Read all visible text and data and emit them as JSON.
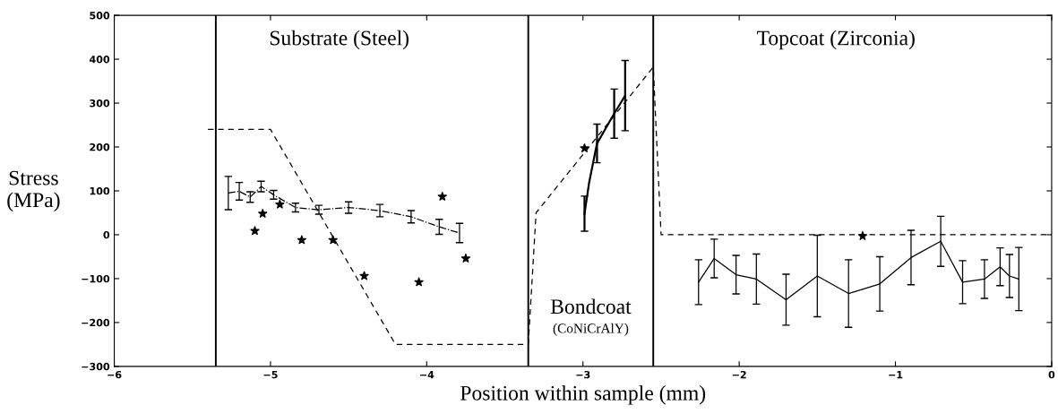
{
  "chart_data": {
    "type": "line",
    "xlabel": "Position within sample (mm)",
    "ylabel": "Stress\n(MPa)",
    "xlim": [
      -6,
      0
    ],
    "xticks": [
      -6,
      -5,
      -4,
      -3,
      -2,
      -1,
      0
    ],
    "ylim": [
      -300,
      500
    ],
    "yticks": [
      -300,
      -200,
      -100,
      0,
      100,
      200,
      300,
      400,
      500
    ],
    "grid": false,
    "legend": false,
    "series": [
      {
        "color": "#000000",
        "line_style": "dashed",
        "marker": "none",
        "x": [
          -5.4,
          -5.0,
          -4.2,
          -3.35,
          -3.3,
          -2.55,
          -2.5,
          0
        ],
        "values": [
          240,
          240,
          -250,
          -250,
          50,
          382,
          0,
          0
        ]
      },
      {
        "color": "#000000",
        "line_style": "dashdot",
        "marker": "none",
        "x": [
          -5.27,
          -5.2,
          -5.13,
          -5.06,
          -4.98,
          -4.84,
          -4.69,
          -4.5,
          -4.3,
          -4.1,
          -3.92,
          -3.79
        ],
        "values": [
          95,
          99,
          86,
          110,
          91,
          62,
          57,
          62,
          55,
          41,
          18,
          4
        ],
        "errors": [
          38,
          20,
          12,
          12,
          10,
          10,
          10,
          13,
          14,
          14,
          17,
          22
        ]
      },
      {
        "color": "#000000",
        "line_style": "solid",
        "marker": "none",
        "x": [
          -2.99,
          -2.96,
          -2.91,
          -2.8,
          -2.73
        ],
        "values": [
          48,
          120,
          208,
          276,
          317
        ],
        "errors": [
          40,
          null,
          44,
          56,
          80
        ]
      },
      {
        "color": "#000000",
        "line_style": "solid",
        "marker": "none",
        "x": [
          -2.26,
          -2.16,
          -2.02,
          -1.89,
          -1.7,
          -1.5,
          -1.3,
          -1.1,
          -0.9,
          -0.71,
          -0.57,
          -0.43,
          -0.33,
          -0.27,
          -0.21
        ],
        "values": [
          -108,
          -54,
          -91,
          -101,
          -148,
          -94,
          -134,
          -112,
          -52,
          -15,
          -108,
          -101,
          -73,
          -94,
          -101
        ],
        "errors": [
          51,
          44,
          44,
          57,
          58,
          93,
          77,
          62,
          62,
          57,
          49,
          44,
          43,
          49,
          72
        ]
      },
      {
        "type": "scatter",
        "color": "#000000",
        "marker": "star",
        "x": [
          -5.1,
          -5.05,
          -4.94,
          -4.8,
          -4.6,
          -4.4,
          -4.05,
          -3.9,
          -3.75,
          -2.99,
          -1.21
        ],
        "values": [
          9,
          48,
          69,
          -12,
          -12,
          -94,
          -108,
          87,
          -54,
          197,
          -3
        ]
      }
    ],
    "ref_lines": [
      {
        "axis": "x",
        "value": -5.35,
        "color": "#000000",
        "line_style": "solid"
      },
      {
        "axis": "x",
        "value": -3.35,
        "color": "#000000",
        "line_style": "solid"
      },
      {
        "axis": "x",
        "value": -2.55,
        "color": "#000000",
        "line_style": "solid"
      }
    ],
    "annotations": [
      "Substrate (Steel)",
      "Bondcoat",
      "(CoNiCrAlY)",
      "Topcoat (Zirconia)"
    ]
  }
}
